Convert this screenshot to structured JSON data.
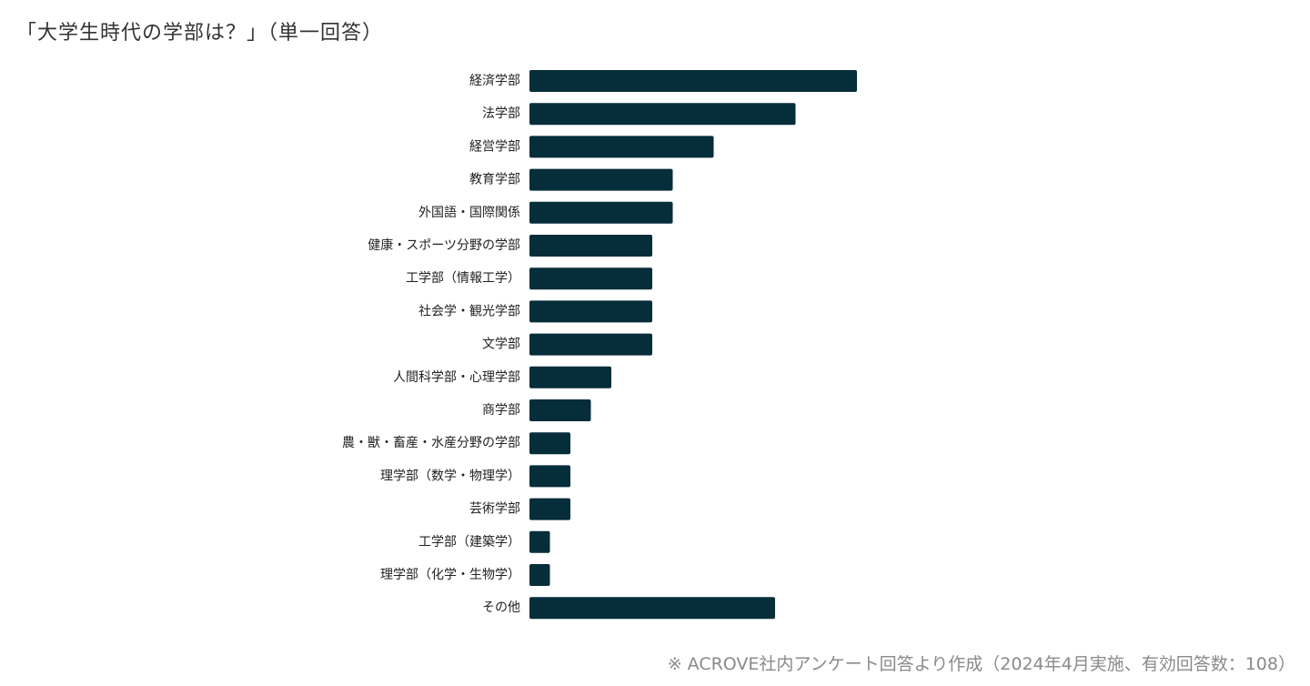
{
  "title": "「大学生時代の学部は？」（単一回答）",
  "note": "※ ACROVE社内アンケート回答より作成（2024年4月実施、有効回答数：108）",
  "colors": {
    "bar": "#062d3a",
    "label": "#222222",
    "background": "#ffffff"
  },
  "chart_data": {
    "type": "bar",
    "orientation": "horizontal",
    "categories": [
      "経済学部",
      "法学部",
      "経営学部",
      "教育学部",
      "外国語・国際関係",
      "健康・スポーツ分野の学部",
      "工学部（情報工学）",
      "社会学・観光学部",
      "文学部",
      "人間科学部・心理学部",
      "商学部",
      "農・獣・畜産・水産分野の学部",
      "理学部（数学・物理学）",
      "芸術学部",
      "工学部（建築学）",
      "理学部（化学・生物学）",
      "その他"
    ],
    "values": [
      16,
      13,
      9,
      7,
      7,
      6,
      6,
      6,
      6,
      4,
      3,
      2,
      2,
      2,
      1,
      1,
      12
    ],
    "xlim": [
      0,
      16
    ],
    "grid": false,
    "axis_visible": false,
    "legend": "none"
  }
}
